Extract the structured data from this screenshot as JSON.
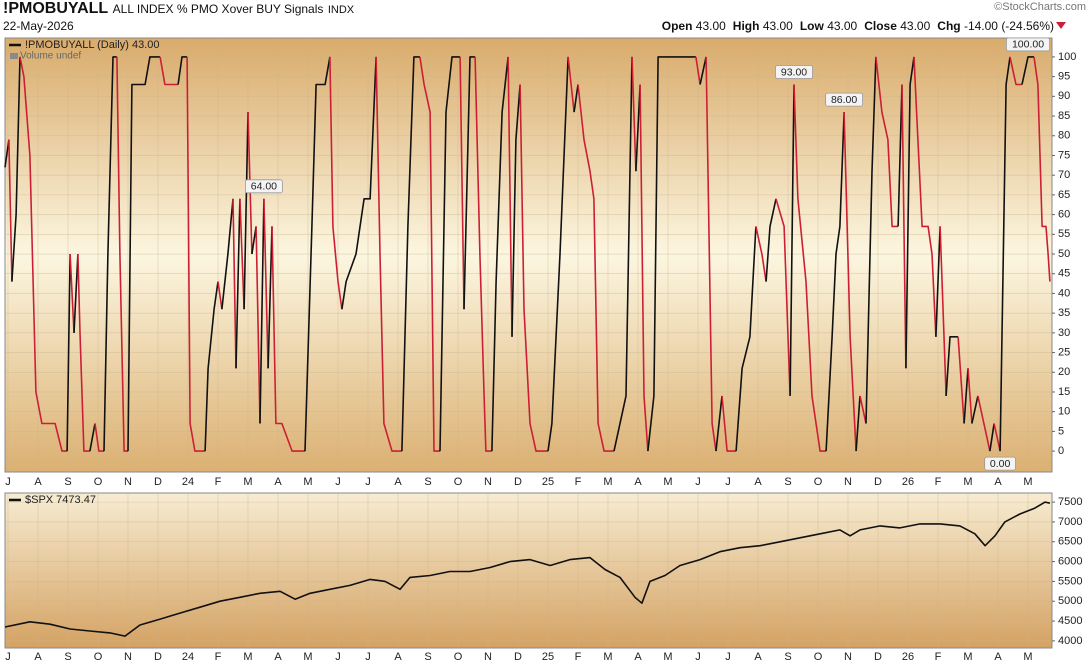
{
  "header": {
    "symbol": "!PMOBUYALL",
    "name": "ALL INDEX % PMO Xover BUY Signals",
    "exchange": "INDX",
    "date": "22-May-2026",
    "brand": "©StockCharts.com",
    "quote": [
      {
        "label": "Open",
        "value": "43.00"
      },
      {
        "label": "High",
        "value": "43.00"
      },
      {
        "label": "Low",
        "value": "43.00"
      },
      {
        "label": "Close",
        "value": "43.00"
      },
      {
        "label": "Chg",
        "value": "-14.00 (-24.56%)"
      }
    ]
  },
  "chart_data": [
    {
      "type": "line",
      "volume_note": "Volume undef",
      "grid": true,
      "xlim": [
        -0.1,
        34.8
      ],
      "ylim": [
        -5.3,
        104.8
      ],
      "yticks": [
        0,
        5,
        10,
        15,
        20,
        25,
        30,
        35,
        40,
        45,
        50,
        55,
        60,
        65,
        70,
        75,
        80,
        85,
        90,
        95,
        100
      ],
      "xticks": [
        {
          "value": 0,
          "label": "J"
        },
        {
          "value": 1,
          "label": "A"
        },
        {
          "value": 2,
          "label": "S"
        },
        {
          "value": 3,
          "label": "O"
        },
        {
          "value": 4,
          "label": "N"
        },
        {
          "value": 5,
          "label": "D"
        },
        {
          "value": 6,
          "label": "24"
        },
        {
          "value": 7,
          "label": "F"
        },
        {
          "value": 8,
          "label": "M"
        },
        {
          "value": 9,
          "label": "A"
        },
        {
          "value": 10,
          "label": "M"
        },
        {
          "value": 11,
          "label": "J"
        },
        {
          "value": 12,
          "label": "J"
        },
        {
          "value": 13,
          "label": "A"
        },
        {
          "value": 14,
          "label": "S"
        },
        {
          "value": 15,
          "label": "O"
        },
        {
          "value": 16,
          "label": "N"
        },
        {
          "value": 17,
          "label": "D"
        },
        {
          "value": 18,
          "label": "25"
        },
        {
          "value": 19,
          "label": "F"
        },
        {
          "value": 20,
          "label": "M"
        },
        {
          "value": 21,
          "label": "A"
        },
        {
          "value": 22,
          "label": "M"
        },
        {
          "value": 23,
          "label": "J"
        },
        {
          "value": 24,
          "label": "J"
        },
        {
          "value": 25,
          "label": "A"
        },
        {
          "value": 26,
          "label": "S"
        },
        {
          "value": 27,
          "label": "O"
        },
        {
          "value": 28,
          "label": "N"
        },
        {
          "value": 29,
          "label": "D"
        },
        {
          "value": 30,
          "label": "26"
        },
        {
          "value": 31,
          "label": "F"
        },
        {
          "value": 32,
          "label": "M"
        },
        {
          "value": 33,
          "label": "A"
        },
        {
          "value": 34,
          "label": "M"
        }
      ],
      "series": [
        {
          "name": "!PMOBUYALL (Daily) 43.00",
          "color": "#111111",
          "down_color": "#cc1f36",
          "x": [
            -0.1,
            0.03,
            0.13,
            0.27,
            0.4,
            0.53,
            0.73,
            0.93,
            1.13,
            1.57,
            1.8,
            1.97,
            2.07,
            2.2,
            2.33,
            2.4,
            2.53,
            2.73,
            2.9,
            3.03,
            3.2,
            3.33,
            3.5,
            3.63,
            3.73,
            3.87,
            4.0,
            4.13,
            4.57,
            4.73,
            5.07,
            5.23,
            5.67,
            5.8,
            5.97,
            6.07,
            6.23,
            6.57,
            6.67,
            6.87,
            7.0,
            7.13,
            7.33,
            7.5,
            7.6,
            7.73,
            7.87,
            8.0,
            8.13,
            8.27,
            8.4,
            8.53,
            8.67,
            8.8,
            8.93,
            9.13,
            9.47,
            9.9,
            10.13,
            10.27,
            10.57,
            10.73,
            10.83,
            11.0,
            11.13,
            11.27,
            11.6,
            11.87,
            12.07,
            12.27,
            12.4,
            12.53,
            12.8,
            13.13,
            13.33,
            13.53,
            13.73,
            13.87,
            14.07,
            14.2,
            14.4,
            14.6,
            14.8,
            15.07,
            15.2,
            15.4,
            15.57,
            15.73,
            15.87,
            15.93,
            16.13,
            16.27,
            16.47,
            16.67,
            16.8,
            16.93,
            17.07,
            17.2,
            17.4,
            17.6,
            18.0,
            18.13,
            18.4,
            18.67,
            18.87,
            19.0,
            19.2,
            19.4,
            19.53,
            19.67,
            19.87,
            20.2,
            20.6,
            20.8,
            20.93,
            21.07,
            21.2,
            21.33,
            21.53,
            21.67,
            22.93,
            23.07,
            23.27,
            23.47,
            23.6,
            23.8,
            23.97,
            24.27,
            24.47,
            24.73,
            24.93,
            25.13,
            25.27,
            25.4,
            25.6,
            25.87,
            26.07,
            26.2,
            26.33,
            26.6,
            26.8,
            27.07,
            27.27,
            27.47,
            27.6,
            27.73,
            27.87,
            28.07,
            28.27,
            28.4,
            28.6,
            28.8,
            28.93,
            29.13,
            29.33,
            29.47,
            29.67,
            29.8,
            29.93,
            30.07,
            30.2,
            30.33,
            30.47,
            30.67,
            30.8,
            30.93,
            31.07,
            31.27,
            31.4,
            31.67,
            31.87,
            32.0,
            32.13,
            32.33,
            32.53,
            32.73,
            32.87,
            33.07,
            33.27,
            33.4,
            33.6,
            33.8,
            34.0,
            34.2,
            34.33,
            34.47,
            34.6,
            34.67,
            34.73
          ],
          "values": [
            72,
            79,
            43,
            60,
            100,
            95,
            75,
            15,
            7,
            7,
            0,
            0,
            50,
            30,
            50,
            30,
            0,
            0,
            7,
            0,
            0,
            50,
            100,
            100,
            50,
            0,
            0,
            93,
            93,
            100,
            100,
            93,
            93,
            100,
            100,
            7,
            0,
            0,
            21,
            36,
            43,
            36,
            50,
            64,
            21,
            64,
            36,
            86,
            50,
            57,
            7,
            64,
            21,
            57,
            7,
            7,
            0,
            0,
            57,
            93,
            93,
            100,
            57,
            43,
            36,
            43,
            50,
            64,
            64,
            100,
            50,
            7,
            0,
            0,
            57,
            100,
            100,
            93,
            86,
            0,
            0,
            86,
            100,
            100,
            36,
            100,
            100,
            50,
            14,
            0,
            0,
            43,
            86,
            100,
            29,
            79,
            93,
            36,
            7,
            0,
            0,
            7,
            50,
            100,
            86,
            93,
            79,
            71,
            64,
            7,
            0,
            0,
            14,
            100,
            71,
            93,
            14,
            0,
            14,
            100,
            100,
            93,
            100,
            7,
            0,
            14,
            0,
            0,
            21,
            29,
            57,
            50,
            43,
            57,
            64,
            57,
            14,
            93,
            64,
            43,
            14,
            0,
            0,
            29,
            50,
            57,
            86,
            29,
            0,
            14,
            7,
            71,
            100,
            86,
            79,
            57,
            57,
            93,
            21,
            93,
            100,
            79,
            57,
            57,
            50,
            29,
            57,
            14,
            29,
            29,
            7,
            21,
            7,
            14,
            7,
            0,
            7,
            0,
            93,
            100,
            93,
            93,
            100,
            100,
            93,
            57,
            57,
            50,
            43
          ]
        }
      ],
      "annotations": [
        {
          "x": 8.53,
          "value": 64,
          "label": "64.00"
        },
        {
          "x": 26.2,
          "value": 93,
          "label": "93.00"
        },
        {
          "x": 27.87,
          "value": 86,
          "label": "86.00"
        },
        {
          "x": 34.0,
          "value": 100,
          "label": "100.00"
        },
        {
          "x": 33.07,
          "value": 0,
          "label": "0.00"
        }
      ]
    },
    {
      "type": "line",
      "grid": true,
      "xlim": [
        -0.1,
        34.8
      ],
      "ylim": [
        3820,
        7730
      ],
      "yticks": [
        4000,
        4500,
        5000,
        5500,
        6000,
        6500,
        7000,
        7500
      ],
      "xticks": [
        {
          "value": 0,
          "label": "J"
        },
        {
          "value": 1,
          "label": "A"
        },
        {
          "value": 2,
          "label": "S"
        },
        {
          "value": 3,
          "label": "O"
        },
        {
          "value": 4,
          "label": "N"
        },
        {
          "value": 5,
          "label": "D"
        },
        {
          "value": 6,
          "label": "24"
        },
        {
          "value": 7,
          "label": "F"
        },
        {
          "value": 8,
          "label": "M"
        },
        {
          "value": 9,
          "label": "A"
        },
        {
          "value": 10,
          "label": "M"
        },
        {
          "value": 11,
          "label": "J"
        },
        {
          "value": 12,
          "label": "J"
        },
        {
          "value": 13,
          "label": "A"
        },
        {
          "value": 14,
          "label": "S"
        },
        {
          "value": 15,
          "label": "O"
        },
        {
          "value": 16,
          "label": "N"
        },
        {
          "value": 17,
          "label": "D"
        },
        {
          "value": 18,
          "label": "25"
        },
        {
          "value": 19,
          "label": "F"
        },
        {
          "value": 20,
          "label": "M"
        },
        {
          "value": 21,
          "label": "A"
        },
        {
          "value": 22,
          "label": "M"
        },
        {
          "value": 23,
          "label": "J"
        },
        {
          "value": 24,
          "label": "J"
        },
        {
          "value": 25,
          "label": "A"
        },
        {
          "value": 26,
          "label": "S"
        },
        {
          "value": 27,
          "label": "O"
        },
        {
          "value": 28,
          "label": "N"
        },
        {
          "value": 29,
          "label": "D"
        },
        {
          "value": 30,
          "label": "26"
        },
        {
          "value": 31,
          "label": "F"
        },
        {
          "value": 32,
          "label": "M"
        },
        {
          "value": 33,
          "label": "A"
        },
        {
          "value": 34,
          "label": "M"
        }
      ],
      "series": [
        {
          "name": "$SPX 7473.47",
          "color": "#111111",
          "x": [
            -0.1,
            0.73,
            1.4,
            2.07,
            2.73,
            3.4,
            3.9,
            4.4,
            5.07,
            5.73,
            6.4,
            7.07,
            7.73,
            8.4,
            9.07,
            9.57,
            10.07,
            10.73,
            11.4,
            12.07,
            12.57,
            13.07,
            13.4,
            14.07,
            14.73,
            15.4,
            16.07,
            16.73,
            17.4,
            18.07,
            18.73,
            19.4,
            19.9,
            20.4,
            20.9,
            21.13,
            21.4,
            21.9,
            22.4,
            23.07,
            23.73,
            24.4,
            25.07,
            25.73,
            26.4,
            27.07,
            27.73,
            28.07,
            28.4,
            29.07,
            29.73,
            30.4,
            31.07,
            31.73,
            32.23,
            32.57,
            32.9,
            33.23,
            33.73,
            34.23,
            34.57,
            34.73
          ],
          "values": [
            4350,
            4480,
            4420,
            4300,
            4250,
            4200,
            4120,
            4400,
            4550,
            4700,
            4850,
            5000,
            5100,
            5200,
            5250,
            5050,
            5200,
            5300,
            5400,
            5550,
            5500,
            5300,
            5600,
            5650,
            5750,
            5750,
            5850,
            6000,
            6050,
            5900,
            6050,
            6100,
            5800,
            5600,
            5100,
            4950,
            5500,
            5650,
            5900,
            6050,
            6250,
            6350,
            6400,
            6500,
            6600,
            6700,
            6800,
            6650,
            6800,
            6900,
            6850,
            6950,
            6950,
            6900,
            6700,
            6400,
            6650,
            7000,
            7200,
            7350,
            7500,
            7473.47
          ]
        }
      ]
    }
  ]
}
